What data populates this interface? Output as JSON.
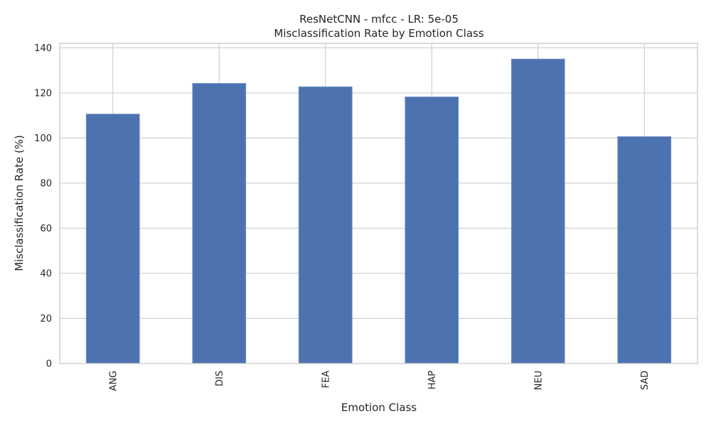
{
  "chart_data": {
    "type": "bar",
    "title_line1": "ResNetCNN - mfcc - LR: 5e-05",
    "title_line2": "Misclassification Rate by Emotion Class",
    "xlabel": "Emotion Class",
    "ylabel": "Misclassification Rate (%)",
    "categories": [
      "ANG",
      "DIS",
      "FEA",
      "HAP",
      "NEU",
      "SAD"
    ],
    "values": [
      110.6,
      124.2,
      122.7,
      118.2,
      135.0,
      100.6
    ],
    "ylim": [
      0,
      142
    ],
    "yticks": [
      0,
      20,
      40,
      60,
      80,
      100,
      120,
      140
    ],
    "grid": true,
    "legend": "none",
    "colors": {
      "bar": "#4c72b0",
      "bar_edge": "#6f8fc4",
      "grid": "#cccccc",
      "text": "#262626"
    }
  }
}
